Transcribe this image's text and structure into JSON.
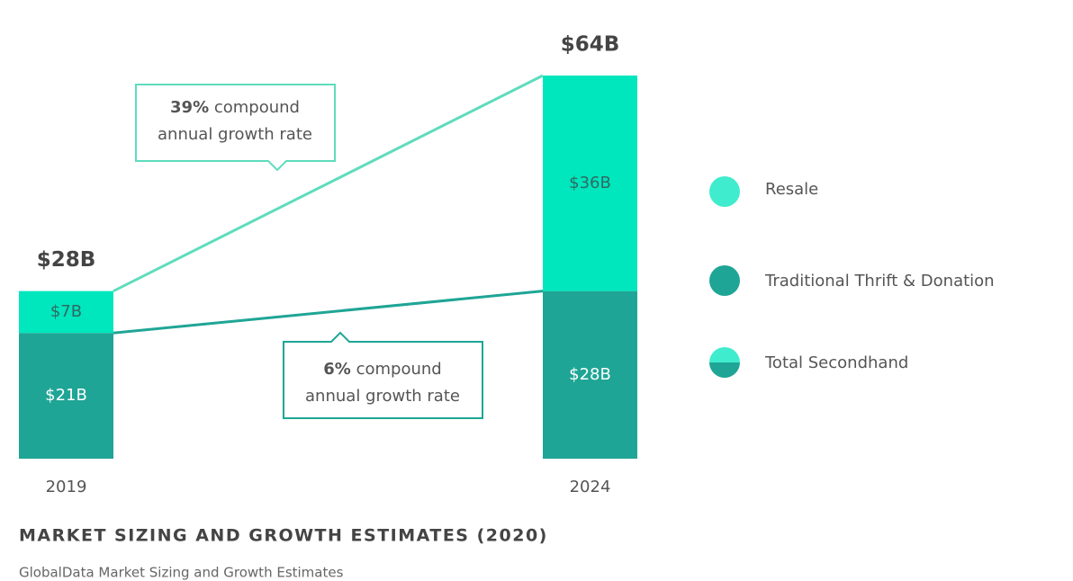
{
  "chart_data": {
    "type": "stacked_bar",
    "title": "MARKET SIZING AND GROWTH ESTIMATES (2020)",
    "subtitle": "GlobalData Market Sizing and Growth Estimates",
    "categories": [
      "2019",
      "2024"
    ],
    "series": [
      {
        "name": "Traditional Thrift & Donation",
        "color": "#1fa595",
        "values": [
          21,
          28
        ],
        "value_labels": [
          "$21B",
          "$28B"
        ]
      },
      {
        "name": "Resale",
        "color": "#00e6bd",
        "values": [
          7,
          36
        ],
        "value_labels": [
          "$7B",
          "$36B"
        ]
      }
    ],
    "totals": {
      "name": "Total Secondhand",
      "values": [
        28,
        64
      ],
      "value_labels": [
        "$28B",
        "$64B"
      ]
    },
    "annotations": [
      {
        "emphasis": "39%",
        "text": "compound",
        "text2": "annual growth rate"
      },
      {
        "emphasis": "6%",
        "text": "compound",
        "text2": "annual growth rate"
      }
    ]
  }
}
